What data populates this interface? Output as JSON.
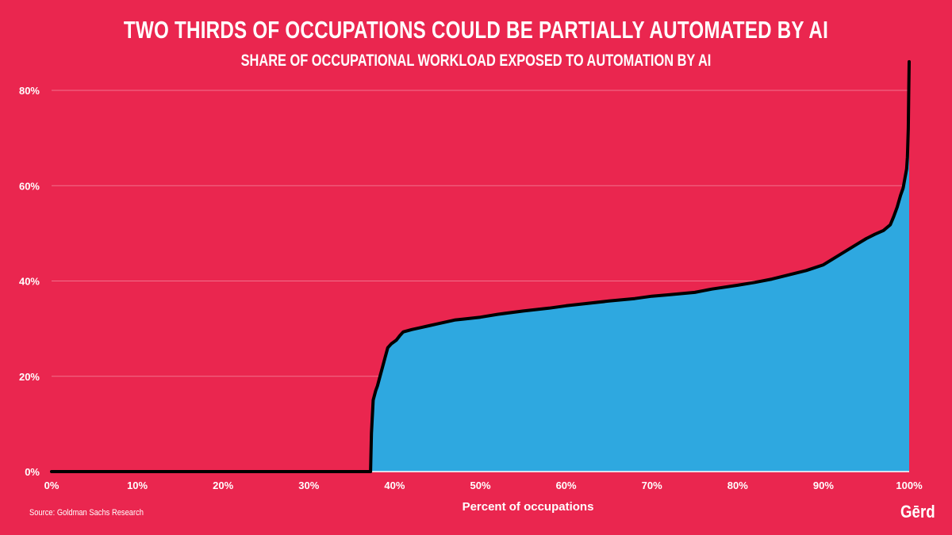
{
  "header": {
    "title": "TWO THIRDS OF OCCUPATIONS COULD BE PARTIALLY AUTOMATED BY AI",
    "subtitle": "SHARE OF OCCUPATIONAL WORKLOAD EXPOSED TO AUTOMATION BY AI"
  },
  "footer": {
    "source": "Source: Goldman Sachs Research",
    "logo": "Gērd"
  },
  "colors": {
    "background": "#ea264f",
    "area_fill": "#2ea8e0",
    "line": "#000000",
    "text": "#ffffff"
  },
  "chart_data": {
    "type": "area",
    "title": "TWO THIRDS OF OCCUPATIONS COULD BE PARTIALLY AUTOMATED BY AI",
    "subtitle": "SHARE OF OCCUPATIONAL WORKLOAD EXPOSED TO AUTOMATION BY AI",
    "xlabel": "Percent of occupations",
    "ylabel": "",
    "xlim": [
      0,
      100
    ],
    "ylim": [
      0,
      80
    ],
    "x_ticks": [
      "0%",
      "10%",
      "20%",
      "30%",
      "40%",
      "50%",
      "60%",
      "70%",
      "80%",
      "90%",
      "100%"
    ],
    "y_ticks": [
      "0%",
      "20%",
      "40%",
      "60%",
      "80%"
    ],
    "grid": "horizontal",
    "legend": "none",
    "series": [
      {
        "points": [
          [
            0,
            0
          ],
          [
            37.2,
            0
          ],
          [
            37.3,
            8
          ],
          [
            37.5,
            15
          ],
          [
            37.8,
            17
          ],
          [
            38.0,
            18
          ],
          [
            38.3,
            20
          ],
          [
            38.6,
            22
          ],
          [
            38.9,
            24
          ],
          [
            39.2,
            26
          ],
          [
            39.6,
            26.8
          ],
          [
            40.2,
            27.6
          ],
          [
            40.6,
            28.5
          ],
          [
            41.0,
            29.3
          ],
          [
            42,
            29.8
          ],
          [
            43,
            30.2
          ],
          [
            44,
            30.6
          ],
          [
            45,
            31.0
          ],
          [
            46,
            31.4
          ],
          [
            47,
            31.8
          ],
          [
            48,
            32.0
          ],
          [
            50,
            32.4
          ],
          [
            52,
            33.0
          ],
          [
            55,
            33.7
          ],
          [
            58,
            34.3
          ],
          [
            60,
            34.8
          ],
          [
            62,
            35.2
          ],
          [
            65,
            35.8
          ],
          [
            68,
            36.3
          ],
          [
            70,
            36.8
          ],
          [
            72,
            37.1
          ],
          [
            75,
            37.6
          ],
          [
            77,
            38.3
          ],
          [
            80,
            39.1
          ],
          [
            82,
            39.7
          ],
          [
            84,
            40.4
          ],
          [
            86,
            41.3
          ],
          [
            88,
            42.2
          ],
          [
            90,
            43.4
          ],
          [
            91,
            44.5
          ],
          [
            92,
            45.6
          ],
          [
            93,
            46.7
          ],
          [
            94,
            47.8
          ],
          [
            95,
            48.9
          ],
          [
            96,
            49.8
          ],
          [
            97,
            50.6
          ],
          [
            97.8,
            51.8
          ],
          [
            98.2,
            53.5
          ],
          [
            98.6,
            55.5
          ],
          [
            99.0,
            58.0
          ],
          [
            99.3,
            59.5
          ],
          [
            99.5,
            61.5
          ],
          [
            99.7,
            63.5
          ],
          [
            99.8,
            66.0
          ],
          [
            99.9,
            72.0
          ],
          [
            99.95,
            80.0
          ],
          [
            100,
            86.0
          ]
        ]
      }
    ]
  }
}
